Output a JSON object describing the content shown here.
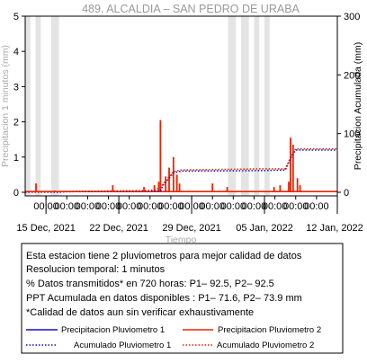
{
  "chart_data": {
    "type": "line",
    "title": "489. ALCALDIA – SAN PEDRO DE URABA",
    "xlabel": "Tiempo",
    "ylabel_left": "Precipitacion 1 minutos (mm)",
    "ylabel_right": "Precipitacion Acumulada (mm)",
    "ylim_left": [
      0,
      5
    ],
    "ylim_right": [
      0,
      300
    ],
    "yticks_left": [
      "0",
      "1",
      "2",
      "3",
      "4",
      "5"
    ],
    "yticks_right": [
      "0",
      "100",
      "200",
      "300"
    ],
    "x_start": "2021-12-13",
    "x_end": "2022-01-12",
    "time_tick_label": "00:00",
    "date_labels": [
      {
        "date": "2021-12-15",
        "label": "15 Dec, 2021"
      },
      {
        "date": "2021-12-22",
        "label": "22 Dec, 2021"
      },
      {
        "date": "2021-12-29",
        "label": "29 Dec, 2021"
      },
      {
        "date": "2022-01-05",
        "label": "05 Jan, 2022"
      },
      {
        "date": "2022-01-12",
        "label": "12 Jan, 2022"
      }
    ],
    "grid": false,
    "gap_bands": [
      {
        "start": "2021-12-13",
        "end": "2021-12-13T12:00"
      },
      {
        "start": "2021-12-14",
        "end": "2021-12-14T12:00"
      },
      {
        "start": "2021-12-15T12:00",
        "end": "2021-12-16T06:00"
      },
      {
        "start": "2022-01-01T12:00",
        "end": "2022-01-02T06:00"
      },
      {
        "start": "2022-01-02T18:00",
        "end": "2022-01-03T12:00"
      },
      {
        "start": "2022-01-04",
        "end": "2022-01-04T12:00"
      },
      {
        "start": "2022-01-05",
        "end": "2022-01-05T12:00"
      }
    ],
    "series": [
      {
        "name": "Precipitacion Pluviometro 1",
        "axis": "left",
        "color": "#1010cc",
        "style": "solid",
        "points": [
          [
            "2021-12-13",
            0.02
          ],
          [
            "2022-01-12",
            0.02
          ]
        ]
      },
      {
        "name": "Precipitacion Pluviometro 2",
        "axis": "left",
        "color": "#ee2200",
        "style": "solid",
        "spikes": [
          [
            "2021-12-14T01:00",
            0.25
          ],
          [
            "2021-12-15T20:00",
            0.05
          ],
          [
            "2021-12-21T10:00",
            0.2
          ],
          [
            "2021-12-24T10:00",
            0.15
          ],
          [
            "2021-12-25T10:00",
            0.2
          ],
          [
            "2021-12-25T16:00",
            0.05
          ],
          [
            "2021-12-25T20:00",
            0.3
          ],
          [
            "2021-12-26T00:00",
            2.05
          ],
          [
            "2021-12-26T12:00",
            0.45
          ],
          [
            "2021-12-26T20:00",
            0.7
          ],
          [
            "2021-12-27T06:00",
            1.0
          ],
          [
            "2021-12-27T14:00",
            0.5
          ],
          [
            "2021-12-27T20:00",
            0.25
          ],
          [
            "2021-12-31T00:00",
            0.25
          ],
          [
            "2022-01-01T10:00",
            0.15
          ],
          [
            "2022-01-05T22:00",
            0.15
          ],
          [
            "2022-01-06T12:00",
            0.2
          ],
          [
            "2022-01-07T08:00",
            0.3
          ],
          [
            "2022-01-07T12:00",
            1.55
          ],
          [
            "2022-01-07T18:00",
            1.35
          ],
          [
            "2022-01-08T04:00",
            0.4
          ],
          [
            "2022-01-08T10:00",
            0.2
          ]
        ]
      },
      {
        "name": "Acumulado Pluviometro 1",
        "axis": "right",
        "color": "#1010cc",
        "style": "dotted",
        "points": [
          [
            "2021-12-13",
            0
          ],
          [
            "2021-12-16",
            0
          ],
          [
            "2021-12-17",
            1
          ],
          [
            "2021-12-26",
            2
          ],
          [
            "2021-12-26T06:00",
            12
          ],
          [
            "2021-12-27T06:00",
            33
          ],
          [
            "2021-12-28",
            36
          ],
          [
            "2022-01-05",
            37
          ],
          [
            "2022-01-07",
            38
          ],
          [
            "2022-01-07T14:00",
            60
          ],
          [
            "2022-01-08",
            72
          ],
          [
            "2022-01-12",
            72
          ]
        ]
      },
      {
        "name": "Acumulado Pluviometro 2",
        "axis": "right",
        "color": "#ee2200",
        "style": "dotted",
        "points": [
          [
            "2021-12-13",
            0
          ],
          [
            "2021-12-16",
            1
          ],
          [
            "2021-12-25",
            3
          ],
          [
            "2021-12-26",
            7
          ],
          [
            "2021-12-26T06:00",
            14
          ],
          [
            "2021-12-27T06:00",
            35
          ],
          [
            "2021-12-28",
            38
          ],
          [
            "2022-01-05",
            40
          ],
          [
            "2022-01-07",
            40
          ],
          [
            "2022-01-07T14:00",
            62
          ],
          [
            "2022-01-08",
            74
          ],
          [
            "2022-01-12",
            74
          ]
        ]
      }
    ]
  },
  "info_box": {
    "lines": [
      "Esta estacion tiene 2 pluviometros para mejor calidad de datos",
      "Resolucion temporal: 1 minutos",
      "% Datos transmitidos* en 720 horas: P1– 92.5, P2– 92.5",
      "PPT Acumulada en datos disponibles : P1– 71.6, P2– 73.9 mm",
      "*Calidad de datos aun sin verificar exhaustivamente"
    ],
    "legend": [
      {
        "label": "Precipitacion Pluviometro 1",
        "color": "#1010cc",
        "style": "solid"
      },
      {
        "label": "Precipitacion Pluviometro 2",
        "color": "#ee2200",
        "style": "solid"
      },
      {
        "label": "Acumulado Pluviometro 1",
        "color": "#1010cc",
        "style": "dotted"
      },
      {
        "label": "Acumulado Pluviometro 2",
        "color": "#ee2200",
        "style": "dotted"
      }
    ]
  },
  "colors": {
    "gap_band": "#e4e4e4",
    "title": "#999999",
    "axis": "#000000"
  }
}
